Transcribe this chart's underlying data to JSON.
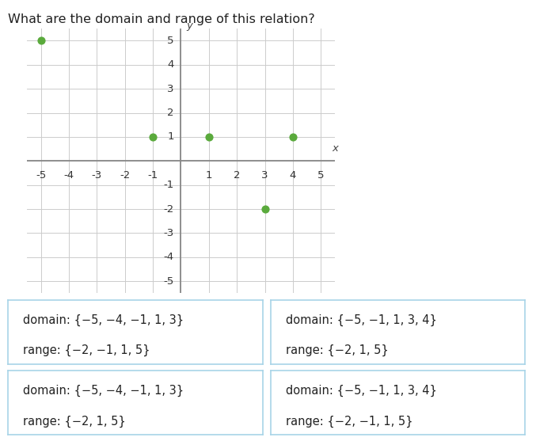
{
  "title": "What are the domain and range of this relation?",
  "points": [
    [
      -5,
      5
    ],
    [
      -1,
      1
    ],
    [
      1,
      1
    ],
    [
      4,
      1
    ],
    [
      3,
      -2
    ]
  ],
  "point_color": "#5aaa3c",
  "point_size": 40,
  "xlim": [
    -5.5,
    5.5
  ],
  "ylim": [
    -5.5,
    5.5
  ],
  "xticks": [
    -5,
    -4,
    -3,
    -2,
    -1,
    1,
    2,
    3,
    4,
    5
  ],
  "yticks": [
    -5,
    -4,
    -3,
    -2,
    -1,
    1,
    2,
    3,
    4,
    5
  ],
  "grid_color": "#cccccc",
  "axis_color": "#888888",
  "bg_color": "#ffffff",
  "answer_boxes": [
    {
      "domain": "domain: {−5, −4, −1, 1, 3}",
      "range": "range: {−2, −1, 1, 5}"
    },
    {
      "domain": "domain: {−5, −1, 1, 3, 4}",
      "range": "range: {−2, 1, 5}"
    },
    {
      "domain": "domain: {−5, −4, −1, 1, 3}",
      "range": "range: {−2, 1, 5}"
    },
    {
      "domain": "domain: {−5, −1, 1, 3, 4}",
      "range": "range: {−2, −1, 1, 5}"
    }
  ],
  "box_border_color": "#a8d4e8",
  "box_bg_color": "#ffffff",
  "font_size_answer": 10.5,
  "font_size_title": 11.5,
  "x_label": "x",
  "y_label": "y",
  "tick_fontsize": 9.5,
  "arrow_color": "#888888"
}
